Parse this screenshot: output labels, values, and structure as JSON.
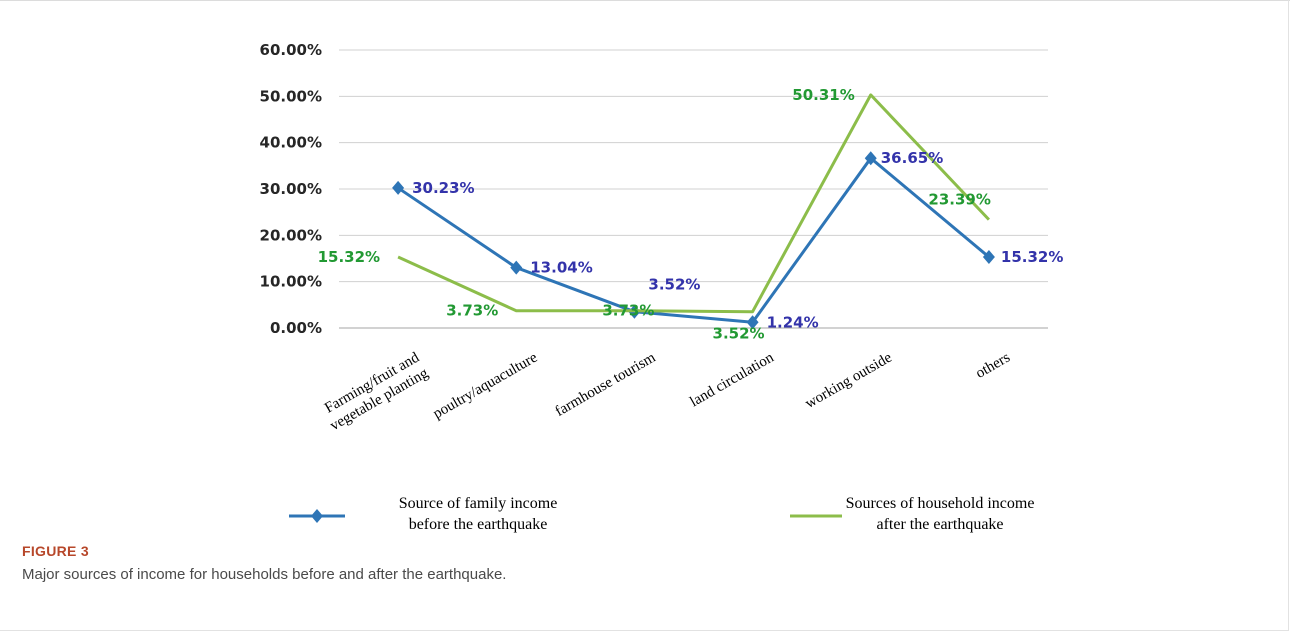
{
  "figure": {
    "label": "FIGURE 3",
    "caption": "Major sources of income for households before and after the earthquake."
  },
  "chart_data": {
    "type": "line",
    "title": "",
    "xlabel": "",
    "ylabel": "",
    "ylim": [
      0,
      60
    ],
    "yticks": [
      "0.00%",
      "10.00%",
      "20.00%",
      "30.00%",
      "40.00%",
      "50.00%",
      "60.00%"
    ],
    "grid": true,
    "legend_position": "bottom",
    "categories": [
      "Farming/fruit and vegetable planting",
      "poultry/aquaculture",
      "farmhouse tourism",
      "land circulation",
      "working outside",
      "others"
    ],
    "category_lines": [
      [
        "Farming/fruit and",
        "vegetable planting"
      ],
      [
        "poultry/aquaculture"
      ],
      [
        "farmhouse tourism"
      ],
      [
        "land circulation"
      ],
      [
        "working outside"
      ],
      [
        "others"
      ]
    ],
    "series": [
      {
        "name": "Source of family income before the earthquake",
        "name_lines": [
          "Source of family income",
          "before the earthquake"
        ],
        "values": [
          30.23,
          13.04,
          3.52,
          1.24,
          36.65,
          15.32
        ],
        "labels": [
          "30.23%",
          "13.04%",
          "3.52%",
          "1.24%",
          "36.65%",
          "15.32%"
        ],
        "color": "#2e75b6",
        "label_color": "#3333aa",
        "marker": "diamond"
      },
      {
        "name": "Sources of household income after the earthquake",
        "name_lines": [
          "Sources of household income",
          "after the earthquake"
        ],
        "values": [
          15.32,
          3.73,
          3.73,
          3.52,
          50.31,
          23.39
        ],
        "labels": [
          "15.32%",
          "3.73%",
          "3.73%",
          "3.52%",
          "50.31%",
          "23.39%"
        ],
        "color": "#8cbd4a",
        "label_color": "#229933",
        "marker": "none"
      }
    ]
  }
}
